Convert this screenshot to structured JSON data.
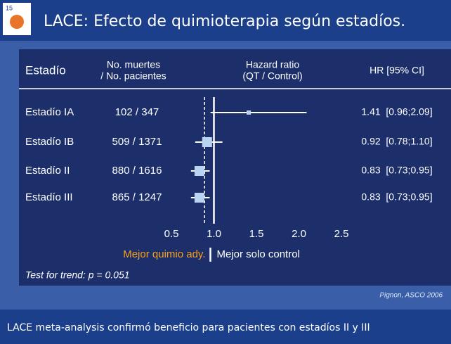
{
  "slide_number": "15",
  "title": "LACE: Efecto de quimioterapia según estadíos.",
  "footer": "LACE meta-analysis confirmó beneficio para pacientes con estadíos II y III",
  "chart_data": {
    "type": "forest",
    "headers": [
      [
        "Estadío"
      ],
      [
        "No. muertes",
        "/ No. pacientes"
      ],
      [
        "Hazard ratio",
        "(QT / Control)"
      ],
      [
        "HR [95% CI]"
      ]
    ],
    "categories": [
      "Estadío IA",
      "Estadío IB",
      "Estadío II",
      "Estadío III"
    ],
    "events": [
      "102 / 347",
      "509 / 1371",
      "880 / 1616",
      "865 / 1247"
    ],
    "values": [
      1.41,
      0.92,
      0.83,
      0.83
    ],
    "ci_low": [
      0.96,
      0.78,
      0.73,
      0.73
    ],
    "ci_high": [
      2.09,
      1.1,
      0.95,
      0.95
    ],
    "value_labels": [
      "1.41  [0.96;2.09]",
      "0.92  [0.78;1.10]",
      "0.83  [0.73;0.95]",
      "0.83  [0.73;0.95]"
    ],
    "xlim": [
      0.5,
      2.5
    ],
    "xticks": [
      0.5,
      {
        "value": 1,
        "label": "1.0"
      },
      1.5,
      {
        "value": 2,
        "label": "2.0"
      },
      2.5
    ],
    "reference_line": 1,
    "pooled_line": 0.89,
    "box_color": "#b8d4f0",
    "left_label": "Mejor quimio ady.",
    "right_label": "Mejor solo control",
    "annotation": "Test for trend: p = 0.051",
    "source": "Pignon, ASCO 2006"
  }
}
